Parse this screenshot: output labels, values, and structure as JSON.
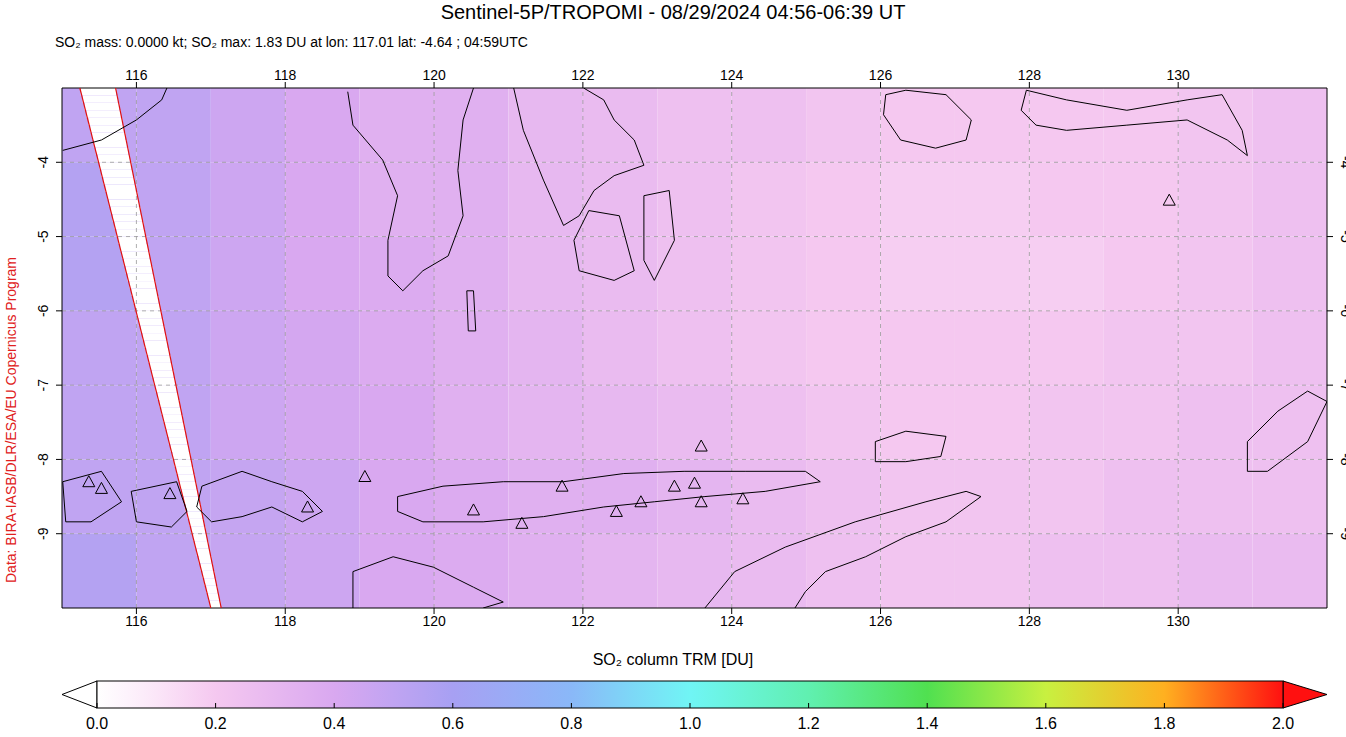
{
  "chart_data": {
    "type": "heatmap_map",
    "title": "Sentinel-5P/TROPOMI - 08/29/2024 04:56-06:39 UT",
    "subtitle": "SO₂ mass: 0.0000 kt; SO₂ max: 1.83 DU at lon: 117.01 lat: -4.64 ; 04:59UTC",
    "side_text": "Data: BIRA-IASB/DLR/ESA/EU Copernicus Program",
    "colorbar_label": "SO₂ column TRM [DU]",
    "xlim": [
      115,
      132
    ],
    "xticks": [
      116,
      118,
      120,
      122,
      124,
      126,
      128,
      130
    ],
    "ylim": [
      -10,
      -3
    ],
    "yticks": [
      -4,
      -5,
      -6,
      -7,
      -8,
      -9
    ],
    "grid": true,
    "marker": "triangle",
    "cells": {
      "lon_edges": [
        115,
        116,
        117,
        118,
        119,
        120,
        121,
        122,
        123,
        124,
        125,
        126,
        127,
        128,
        129,
        130,
        131,
        132
      ],
      "lat_edges": [
        -3,
        -4,
        -5,
        -6,
        -7,
        -8,
        -9,
        -10
      ],
      "values": [
        [
          0.5,
          0.5,
          0.45,
          0.4,
          0.35,
          0.35,
          0.3,
          0.28,
          0.25,
          0.25,
          0.22,
          0.2,
          0.2,
          0.2,
          0.2,
          0.22,
          0.25
        ],
        [
          0.55,
          0.5,
          0.45,
          0.4,
          0.35,
          0.35,
          0.3,
          0.28,
          0.25,
          0.22,
          0.2,
          0.18,
          0.18,
          0.2,
          0.2,
          0.22,
          0.25
        ],
        [
          0.55,
          0.5,
          0.45,
          0.4,
          0.38,
          0.35,
          0.3,
          0.28,
          0.25,
          0.22,
          0.2,
          0.18,
          0.18,
          0.18,
          0.2,
          0.22,
          0.25
        ],
        [
          0.5,
          0.5,
          0.45,
          0.42,
          0.38,
          0.35,
          0.32,
          0.28,
          0.25,
          0.22,
          0.2,
          0.2,
          0.2,
          0.2,
          0.22,
          0.22,
          0.25
        ],
        [
          0.5,
          0.5,
          0.45,
          0.42,
          0.4,
          0.35,
          0.32,
          0.3,
          0.28,
          0.25,
          0.22,
          0.2,
          0.2,
          0.22,
          0.22,
          0.25,
          0.25
        ],
        [
          0.5,
          0.5,
          0.48,
          0.45,
          0.4,
          0.38,
          0.35,
          0.35,
          0.32,
          0.28,
          0.25,
          0.22,
          0.22,
          0.22,
          0.25,
          0.25,
          0.25
        ],
        [
          0.55,
          0.5,
          0.48,
          0.45,
          0.4,
          0.38,
          0.35,
          0.32,
          0.3,
          0.28,
          0.25,
          0.22,
          0.22,
          0.25,
          0.25,
          0.28,
          0.28
        ]
      ]
    },
    "colorbar": {
      "range": [
        0,
        2
      ],
      "ticks": [
        {
          "value": 0,
          "label": "0.0"
        },
        {
          "value": 0.2,
          "label": "0.2"
        },
        {
          "value": 0.4,
          "label": "0.4"
        },
        {
          "value": 0.6,
          "label": "0.6"
        },
        {
          "value": 0.8,
          "label": "0.8"
        },
        {
          "value": 1,
          "label": "1.0"
        },
        {
          "value": 1.2,
          "label": "1.2"
        },
        {
          "value": 1.4,
          "label": "1.4"
        },
        {
          "value": 1.6,
          "label": "1.6"
        },
        {
          "value": 1.8,
          "label": "1.8"
        },
        {
          "value": 2,
          "label": "2.0"
        }
      ]
    },
    "swath_edges": [
      [
        [
          115.24,
          -3
        ],
        [
          117.0,
          -10
        ]
      ],
      [
        [
          115.72,
          -3
        ],
        [
          117.14,
          -10
        ]
      ]
    ],
    "volcanoes": [
      [
        115.36,
        -8.3
      ],
      [
        115.53,
        -8.39
      ],
      [
        116.45,
        -8.46
      ],
      [
        118.3,
        -8.64
      ],
      [
        119.07,
        -8.23
      ],
      [
        120.53,
        -8.68
      ],
      [
        121.18,
        -8.86
      ],
      [
        121.72,
        -8.36
      ],
      [
        122.45,
        -8.7
      ],
      [
        122.78,
        -8.57
      ],
      [
        123.23,
        -8.36
      ],
      [
        123.5,
        -8.32
      ],
      [
        123.59,
        -8.57
      ],
      [
        124.15,
        -8.53
      ],
      [
        123.59,
        -7.82
      ],
      [
        129.88,
        -4.51
      ]
    ],
    "coastlines": [
      [
        [
          115.01,
          -3.84
        ],
        [
          115.53,
          -3.7
        ],
        [
          116.0,
          -3.43
        ],
        [
          116.34,
          -3.16
        ],
        [
          116.41,
          -3.0
        ]
      ],
      [
        [
          118.84,
          -3.05
        ],
        [
          118.91,
          -3.5
        ],
        [
          119.31,
          -3.97
        ],
        [
          119.51,
          -4.45
        ],
        [
          119.38,
          -5.05
        ],
        [
          119.38,
          -5.53
        ],
        [
          119.58,
          -5.73
        ],
        [
          119.85,
          -5.46
        ],
        [
          120.19,
          -5.26
        ],
        [
          120.39,
          -4.72
        ],
        [
          120.32,
          -4.11
        ],
        [
          120.39,
          -3.43
        ],
        [
          120.53,
          -3.0
        ]
      ],
      [
        [
          121.07,
          -3.0
        ],
        [
          121.2,
          -3.57
        ],
        [
          121.47,
          -4.24
        ],
        [
          121.74,
          -4.85
        ],
        [
          121.95,
          -4.72
        ],
        [
          122.15,
          -4.38
        ],
        [
          122.42,
          -4.18
        ],
        [
          122.82,
          -4.04
        ],
        [
          122.69,
          -3.7
        ],
        [
          122.42,
          -3.43
        ],
        [
          122.28,
          -3.16
        ],
        [
          122.01,
          -3.0
        ]
      ],
      [
        [
          121.88,
          -5.05
        ],
        [
          122.08,
          -4.65
        ],
        [
          122.49,
          -4.72
        ],
        [
          122.69,
          -5.46
        ],
        [
          122.42,
          -5.59
        ],
        [
          121.95,
          -5.46
        ],
        [
          121.88,
          -5.05
        ]
      ],
      [
        [
          122.82,
          -4.45
        ],
        [
          123.16,
          -4.38
        ],
        [
          123.23,
          -5.05
        ],
        [
          122.96,
          -5.59
        ],
        [
          122.82,
          -5.32
        ],
        [
          122.82,
          -4.45
        ]
      ],
      [
        [
          120.44,
          -5.73
        ],
        [
          120.53,
          -5.73
        ],
        [
          120.56,
          -6.27
        ],
        [
          120.46,
          -6.27
        ],
        [
          120.44,
          -5.73
        ]
      ],
      [
        [
          126.07,
          -3.09
        ],
        [
          126.34,
          -3.03
        ],
        [
          126.88,
          -3.09
        ],
        [
          127.22,
          -3.43
        ],
        [
          127.15,
          -3.7
        ],
        [
          126.74,
          -3.81
        ],
        [
          126.27,
          -3.7
        ],
        [
          126.04,
          -3.36
        ],
        [
          126.07,
          -3.09
        ]
      ],
      [
        [
          127.96,
          -3.03
        ],
        [
          128.5,
          -3.16
        ],
        [
          129.31,
          -3.3
        ],
        [
          130.12,
          -3.16
        ],
        [
          130.59,
          -3.09
        ],
        [
          130.86,
          -3.57
        ],
        [
          130.93,
          -3.91
        ],
        [
          130.66,
          -3.7
        ],
        [
          130.12,
          -3.43
        ],
        [
          129.31,
          -3.5
        ],
        [
          128.5,
          -3.57
        ],
        [
          128.09,
          -3.5
        ],
        [
          127.89,
          -3.3
        ],
        [
          127.96,
          -3.03
        ]
      ],
      [
        [
          115.01,
          -8.3
        ],
        [
          115.53,
          -8.16
        ],
        [
          115.8,
          -8.57
        ],
        [
          115.39,
          -8.84
        ],
        [
          115.05,
          -8.84
        ],
        [
          115.01,
          -8.3
        ]
      ],
      [
        [
          115.93,
          -8.43
        ],
        [
          116.54,
          -8.3
        ],
        [
          116.68,
          -8.7
        ],
        [
          116.47,
          -8.91
        ],
        [
          116.0,
          -8.84
        ],
        [
          115.93,
          -8.43
        ]
      ],
      [
        [
          116.88,
          -8.36
        ],
        [
          117.42,
          -8.16
        ],
        [
          117.82,
          -8.3
        ],
        [
          118.23,
          -8.43
        ],
        [
          118.5,
          -8.7
        ],
        [
          118.23,
          -8.84
        ],
        [
          117.82,
          -8.64
        ],
        [
          117.42,
          -8.77
        ],
        [
          117.01,
          -8.84
        ],
        [
          116.81,
          -8.64
        ],
        [
          116.88,
          -8.36
        ]
      ],
      [
        [
          119.51,
          -8.5
        ],
        [
          120.12,
          -8.36
        ],
        [
          120.93,
          -8.3
        ],
        [
          121.74,
          -8.3
        ],
        [
          122.55,
          -8.19
        ],
        [
          123.36,
          -8.16
        ],
        [
          124.18,
          -8.16
        ],
        [
          124.99,
          -8.16
        ],
        [
          125.19,
          -8.3
        ],
        [
          124.45,
          -8.43
        ],
        [
          123.64,
          -8.5
        ],
        [
          122.96,
          -8.57
        ],
        [
          122.28,
          -8.64
        ],
        [
          121.47,
          -8.77
        ],
        [
          120.66,
          -8.84
        ],
        [
          119.85,
          -8.84
        ],
        [
          119.51,
          -8.7
        ],
        [
          119.51,
          -8.5
        ]
      ],
      [
        [
          118.91,
          -10
        ],
        [
          118.91,
          -9.51
        ],
        [
          119.45,
          -9.31
        ],
        [
          119.99,
          -9.45
        ],
        [
          120.53,
          -9.72
        ],
        [
          120.93,
          -9.92
        ],
        [
          120.66,
          -10
        ]
      ],
      [
        [
          123.64,
          -10
        ],
        [
          124.04,
          -9.51
        ],
        [
          124.72,
          -9.18
        ],
        [
          125.66,
          -8.84
        ],
        [
          126.61,
          -8.57
        ],
        [
          127.15,
          -8.43
        ],
        [
          127.35,
          -8.5
        ],
        [
          126.88,
          -8.84
        ],
        [
          126.34,
          -9.04
        ],
        [
          125.8,
          -9.31
        ],
        [
          125.26,
          -9.51
        ],
        [
          124.99,
          -9.78
        ],
        [
          124.85,
          -10
        ]
      ],
      [
        [
          125.93,
          -7.76
        ],
        [
          126.34,
          -7.62
        ],
        [
          126.88,
          -7.69
        ],
        [
          126.81,
          -7.96
        ],
        [
          126.34,
          -8.03
        ],
        [
          125.93,
          -8.03
        ],
        [
          125.93,
          -7.76
        ]
      ],
      [
        [
          130.93,
          -7.76
        ],
        [
          131.34,
          -7.35
        ],
        [
          131.74,
          -7.08
        ],
        [
          132.0,
          -7.22
        ],
        [
          131.74,
          -7.76
        ],
        [
          131.2,
          -8.16
        ],
        [
          130.93,
          -8.16
        ],
        [
          130.93,
          -7.76
        ]
      ]
    ]
  }
}
